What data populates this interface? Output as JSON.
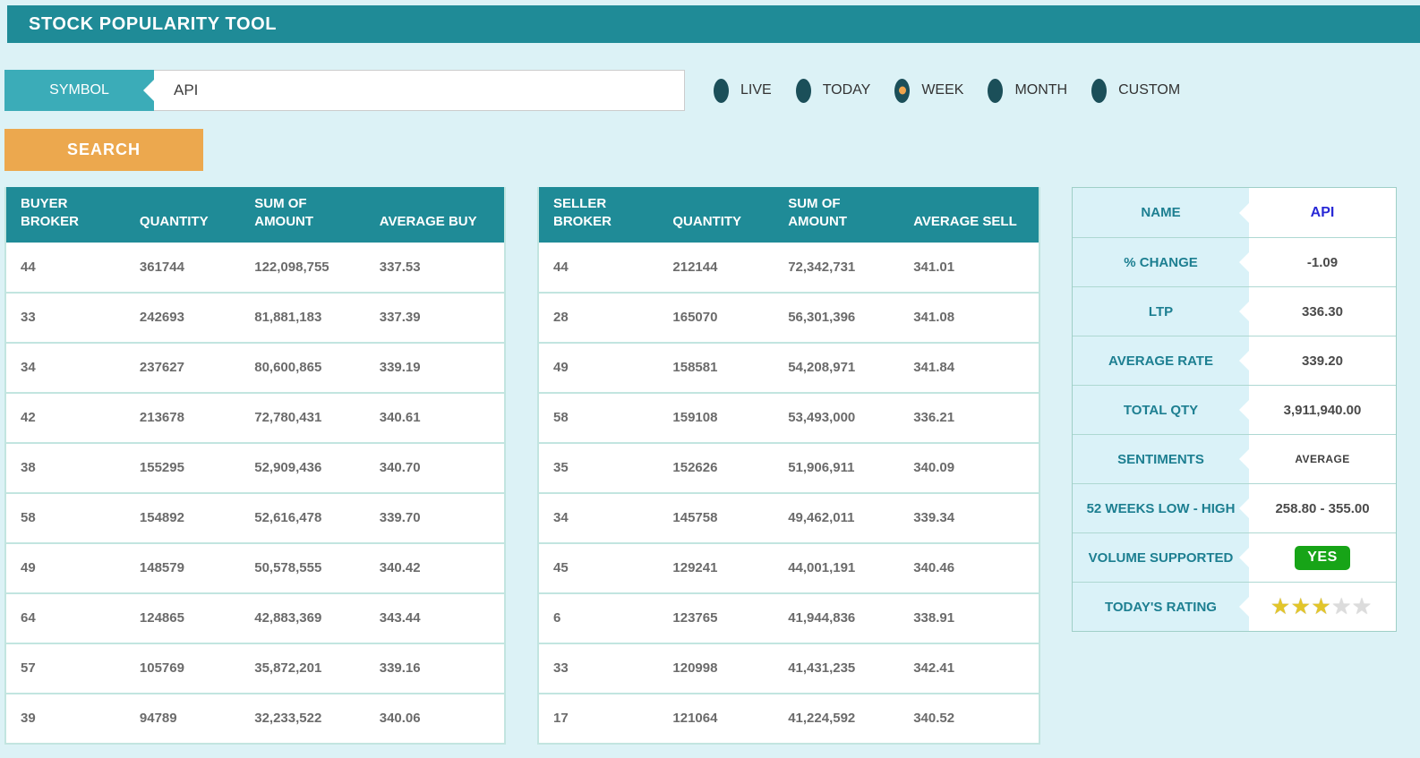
{
  "title": "STOCK POPULARITY TOOL",
  "search": {
    "symbol_label": "SYMBOL",
    "symbol_value": "API",
    "button_label": "SEARCH"
  },
  "periods": [
    {
      "label": "LIVE",
      "selected": false
    },
    {
      "label": "TODAY",
      "selected": false
    },
    {
      "label": "WEEK",
      "selected": true
    },
    {
      "label": "MONTH",
      "selected": false
    },
    {
      "label": "CUSTOM",
      "selected": false
    }
  ],
  "buyer_table": {
    "headers": [
      "BUYER BROKER",
      "QUANTITY",
      "SUM OF AMOUNT",
      "AVERAGE BUY"
    ],
    "rows": [
      [
        "44",
        "361744",
        "122,098,755",
        "337.53"
      ],
      [
        "33",
        "242693",
        "81,881,183",
        "337.39"
      ],
      [
        "34",
        "237627",
        "80,600,865",
        "339.19"
      ],
      [
        "42",
        "213678",
        "72,780,431",
        "340.61"
      ],
      [
        "38",
        "155295",
        "52,909,436",
        "340.70"
      ],
      [
        "58",
        "154892",
        "52,616,478",
        "339.70"
      ],
      [
        "49",
        "148579",
        "50,578,555",
        "340.42"
      ],
      [
        "64",
        "124865",
        "42,883,369",
        "343.44"
      ],
      [
        "57",
        "105769",
        "35,872,201",
        "339.16"
      ],
      [
        "39",
        "94789",
        "32,233,522",
        "340.06"
      ]
    ]
  },
  "seller_table": {
    "headers": [
      "SELLER BROKER",
      "QUANTITY",
      "SUM OF AMOUNT",
      "AVERAGE SELL"
    ],
    "rows": [
      [
        "44",
        "212144",
        "72,342,731",
        "341.01"
      ],
      [
        "28",
        "165070",
        "56,301,396",
        "341.08"
      ],
      [
        "49",
        "158581",
        "54,208,971",
        "341.84"
      ],
      [
        "58",
        "159108",
        "53,493,000",
        "336.21"
      ],
      [
        "35",
        "152626",
        "51,906,911",
        "340.09"
      ],
      [
        "34",
        "145758",
        "49,462,011",
        "339.34"
      ],
      [
        "45",
        "129241",
        "44,001,191",
        "340.46"
      ],
      [
        "6",
        "123765",
        "41,944,836",
        "338.91"
      ],
      [
        "33",
        "120998",
        "41,431,235",
        "342.41"
      ],
      [
        "17",
        "121064",
        "41,224,592",
        "340.52"
      ]
    ]
  },
  "details": [
    {
      "label": "NAME",
      "type": "name",
      "value": "API"
    },
    {
      "label": "% CHANGE",
      "type": "text",
      "value": "-1.09"
    },
    {
      "label": "LTP",
      "type": "text",
      "value": "336.30"
    },
    {
      "label": "AVERAGE RATE",
      "type": "text",
      "value": "339.20"
    },
    {
      "label": "TOTAL QTY",
      "type": "text",
      "value": "3,911,940.00"
    },
    {
      "label": "SENTIMENTS",
      "type": "small",
      "value": "AVERAGE"
    },
    {
      "label": "52 WEEKS LOW - HIGH",
      "type": "text",
      "value": "258.80 - 355.00"
    },
    {
      "label": "VOLUME SUPPORTED",
      "type": "badge",
      "value": "YES"
    },
    {
      "label": "TODAY'S RATING",
      "type": "rating",
      "value": 3,
      "max": 5
    }
  ],
  "icons": {
    "star": "★"
  },
  "colors": {
    "header_teal": "#1F8B97",
    "symbol_label_teal": "#3BACB8",
    "search_orange": "#ECA84E",
    "radio_dark_teal": "#1B4F59",
    "radio_selected_dot": "#F0A44C",
    "name_blue": "#2929D6",
    "badge_green": "#17A417",
    "star_gold": "#E2C52B",
    "star_empty": "#DCDCDC",
    "page_bg": "#DCF2F6"
  }
}
